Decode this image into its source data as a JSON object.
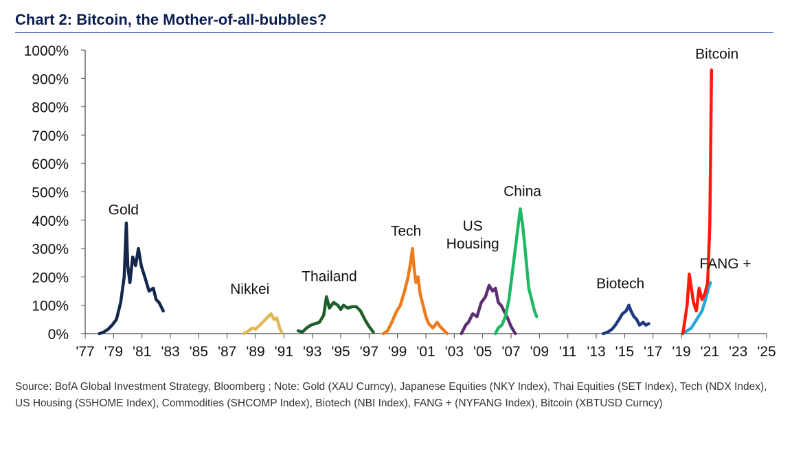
{
  "header": {
    "title": "Chart 2:  Bitcoin, the Mother-of-all-bubbles?"
  },
  "footer": {
    "source": "Source:  BofA Global Investment Strategy, Bloomberg ; Note: Gold (XAU Curncy), Japanese Equities (NKY Index), Thai Equities (SET Index), Tech (NDX Index), US Housing (S5HOME Index), Commodities (SHCOMP Index), Biotech (NBI Index), FANG + (NYFANG Index), Bitcoin (XBTUSD Curncy)"
  },
  "chart_data": {
    "type": "line",
    "title": "Chart 2:  Bitcoin, the Mother-of-all-bubbles?",
    "xlabel": "",
    "ylabel": "",
    "xlim": [
      1977,
      2025
    ],
    "ylim": [
      0,
      1000
    ],
    "grid": false,
    "legend": "none",
    "x_ticks": [
      {
        "value": 1977,
        "label": "'77"
      },
      {
        "value": 1979,
        "label": "'79"
      },
      {
        "value": 1981,
        "label": "'81"
      },
      {
        "value": 1983,
        "label": "'83"
      },
      {
        "value": 1985,
        "label": "'85"
      },
      {
        "value": 1987,
        "label": "'87"
      },
      {
        "value": 1989,
        "label": "'89"
      },
      {
        "value": 1991,
        "label": "'91"
      },
      {
        "value": 1993,
        "label": "'93"
      },
      {
        "value": 1995,
        "label": "'95"
      },
      {
        "value": 1997,
        "label": "'97"
      },
      {
        "value": 1999,
        "label": "'99"
      },
      {
        "value": 2001,
        "label": "'01"
      },
      {
        "value": 2003,
        "label": "'03"
      },
      {
        "value": 2005,
        "label": "'05"
      },
      {
        "value": 2007,
        "label": "'07"
      },
      {
        "value": 2009,
        "label": "'09"
      },
      {
        "value": 2011,
        "label": "'11"
      },
      {
        "value": 2013,
        "label": "'13"
      },
      {
        "value": 2015,
        "label": "'15"
      },
      {
        "value": 2017,
        "label": "'17"
      },
      {
        "value": 2019,
        "label": "'19"
      },
      {
        "value": 2021,
        "label": "'21"
      },
      {
        "value": 2023,
        "label": "'23"
      },
      {
        "value": 2025,
        "label": "'25"
      }
    ],
    "y_ticks": [
      {
        "value": 0,
        "label": "0%"
      },
      {
        "value": 100,
        "label": "100%"
      },
      {
        "value": 200,
        "label": "200%"
      },
      {
        "value": 300,
        "label": "300%"
      },
      {
        "value": 400,
        "label": "400%"
      },
      {
        "value": 500,
        "label": "500%"
      },
      {
        "value": 600,
        "label": "600%"
      },
      {
        "value": 700,
        "label": "700%"
      },
      {
        "value": 800,
        "label": "800%"
      },
      {
        "value": 900,
        "label": "900%"
      },
      {
        "value": 1000,
        "label": "1000%"
      }
    ],
    "series": [
      {
        "name": "Gold",
        "color": "#14284d",
        "label_at": [
          1979.7,
          420
        ],
        "points": [
          [
            1978.0,
            0
          ],
          [
            1978.3,
            5
          ],
          [
            1978.6,
            15
          ],
          [
            1978.9,
            30
          ],
          [
            1979.2,
            50
          ],
          [
            1979.5,
            110
          ],
          [
            1979.75,
            200
          ],
          [
            1979.9,
            390
          ],
          [
            1980.0,
            240
          ],
          [
            1980.15,
            180
          ],
          [
            1980.35,
            270
          ],
          [
            1980.55,
            240
          ],
          [
            1980.75,
            300
          ],
          [
            1980.95,
            240
          ],
          [
            1981.2,
            200
          ],
          [
            1981.5,
            150
          ],
          [
            1981.8,
            160
          ],
          [
            1982.0,
            120
          ],
          [
            1982.2,
            110
          ],
          [
            1982.5,
            80
          ]
        ]
      },
      {
        "name": "Nikkei",
        "color": "#e0b854",
        "label_at": [
          1988.6,
          140
        ],
        "points": [
          [
            1988.2,
            0
          ],
          [
            1988.5,
            10
          ],
          [
            1988.8,
            20
          ],
          [
            1989.0,
            15
          ],
          [
            1989.3,
            30
          ],
          [
            1989.6,
            45
          ],
          [
            1989.9,
            60
          ],
          [
            1990.1,
            70
          ],
          [
            1990.3,
            50
          ],
          [
            1990.5,
            55
          ],
          [
            1990.7,
            20
          ],
          [
            1990.85,
            5
          ]
        ]
      },
      {
        "name": "Thailand",
        "color": "#1d5e2c",
        "label_at": [
          1994.2,
          185
        ],
        "points": [
          [
            1992.0,
            10
          ],
          [
            1992.3,
            5
          ],
          [
            1992.6,
            20
          ],
          [
            1992.9,
            30
          ],
          [
            1993.2,
            35
          ],
          [
            1993.5,
            40
          ],
          [
            1993.8,
            65
          ],
          [
            1994.0,
            130
          ],
          [
            1994.2,
            90
          ],
          [
            1994.5,
            110
          ],
          [
            1994.8,
            100
          ],
          [
            1995.0,
            85
          ],
          [
            1995.2,
            100
          ],
          [
            1995.5,
            90
          ],
          [
            1995.8,
            95
          ],
          [
            1996.1,
            95
          ],
          [
            1996.4,
            80
          ],
          [
            1996.7,
            50
          ],
          [
            1997.0,
            25
          ],
          [
            1997.3,
            5
          ]
        ]
      },
      {
        "name": "Tech",
        "color": "#ef7b1c",
        "label_at": [
          1999.6,
          345
        ],
        "points": [
          [
            1998.0,
            0
          ],
          [
            1998.3,
            10
          ],
          [
            1998.6,
            40
          ],
          [
            1998.9,
            75
          ],
          [
            1999.2,
            100
          ],
          [
            1999.5,
            150
          ],
          [
            1999.75,
            200
          ],
          [
            1999.95,
            260
          ],
          [
            2000.05,
            300
          ],
          [
            2000.15,
            240
          ],
          [
            2000.3,
            180
          ],
          [
            2000.45,
            200
          ],
          [
            2000.6,
            140
          ],
          [
            2000.8,
            100
          ],
          [
            2001.0,
            60
          ],
          [
            2001.2,
            35
          ],
          [
            2001.5,
            20
          ],
          [
            2001.8,
            40
          ],
          [
            2002.0,
            25
          ],
          [
            2002.2,
            15
          ],
          [
            2002.5,
            0
          ]
        ]
      },
      {
        "name": "US\nHousing",
        "color": "#5e2f6e",
        "label_at": [
          2004.3,
          300
        ],
        "points": [
          [
            2003.5,
            0
          ],
          [
            2003.8,
            30
          ],
          [
            2004.0,
            40
          ],
          [
            2004.3,
            70
          ],
          [
            2004.6,
            60
          ],
          [
            2004.9,
            110
          ],
          [
            2005.2,
            130
          ],
          [
            2005.45,
            170
          ],
          [
            2005.7,
            150
          ],
          [
            2005.9,
            160
          ],
          [
            2006.1,
            110
          ],
          [
            2006.3,
            100
          ],
          [
            2006.5,
            80
          ],
          [
            2006.8,
            50
          ],
          [
            2007.0,
            25
          ],
          [
            2007.3,
            0
          ]
        ]
      },
      {
        "name": "China",
        "color": "#1fb866",
        "label_at": [
          2007.8,
          485
        ],
        "points": [
          [
            2005.9,
            0
          ],
          [
            2006.1,
            20
          ],
          [
            2006.35,
            30
          ],
          [
            2006.6,
            60
          ],
          [
            2006.85,
            120
          ],
          [
            2007.1,
            220
          ],
          [
            2007.3,
            300
          ],
          [
            2007.5,
            380
          ],
          [
            2007.65,
            440
          ],
          [
            2007.8,
            390
          ],
          [
            2007.95,
            320
          ],
          [
            2008.1,
            240
          ],
          [
            2008.25,
            160
          ],
          [
            2008.45,
            120
          ],
          [
            2008.65,
            80
          ],
          [
            2008.8,
            60
          ]
        ]
      },
      {
        "name": "Biotech",
        "color": "#1d3a80",
        "label_at": [
          2014.7,
          160
        ],
        "points": [
          [
            2013.5,
            0
          ],
          [
            2013.8,
            5
          ],
          [
            2014.1,
            15
          ],
          [
            2014.35,
            30
          ],
          [
            2014.6,
            50
          ],
          [
            2014.85,
            70
          ],
          [
            2015.1,
            80
          ],
          [
            2015.3,
            100
          ],
          [
            2015.45,
            80
          ],
          [
            2015.65,
            60
          ],
          [
            2015.85,
            50
          ],
          [
            2016.05,
            30
          ],
          [
            2016.3,
            40
          ],
          [
            2016.5,
            30
          ],
          [
            2016.7,
            35
          ]
        ]
      },
      {
        "name": "FANG +",
        "color": "#2aa6de",
        "label_at": [
          2022.1,
          230
        ],
        "points": [
          [
            2019.1,
            0
          ],
          [
            2019.4,
            10
          ],
          [
            2019.7,
            20
          ],
          [
            2019.95,
            40
          ],
          [
            2020.2,
            60
          ],
          [
            2020.45,
            80
          ],
          [
            2020.7,
            120
          ],
          [
            2020.9,
            160
          ],
          [
            2021.05,
            180
          ]
        ]
      },
      {
        "name": "Bitcoin",
        "color": "#ff1a0a",
        "label_at": [
          2021.5,
          970
        ],
        "points": [
          [
            2019.1,
            0
          ],
          [
            2019.4,
            100
          ],
          [
            2019.55,
            210
          ],
          [
            2019.7,
            160
          ],
          [
            2019.85,
            110
          ],
          [
            2020.05,
            80
          ],
          [
            2020.25,
            160
          ],
          [
            2020.45,
            120
          ],
          [
            2020.65,
            140
          ],
          [
            2020.85,
            180
          ],
          [
            2021.0,
            380
          ],
          [
            2021.05,
            600
          ],
          [
            2021.12,
            930
          ]
        ]
      }
    ]
  }
}
